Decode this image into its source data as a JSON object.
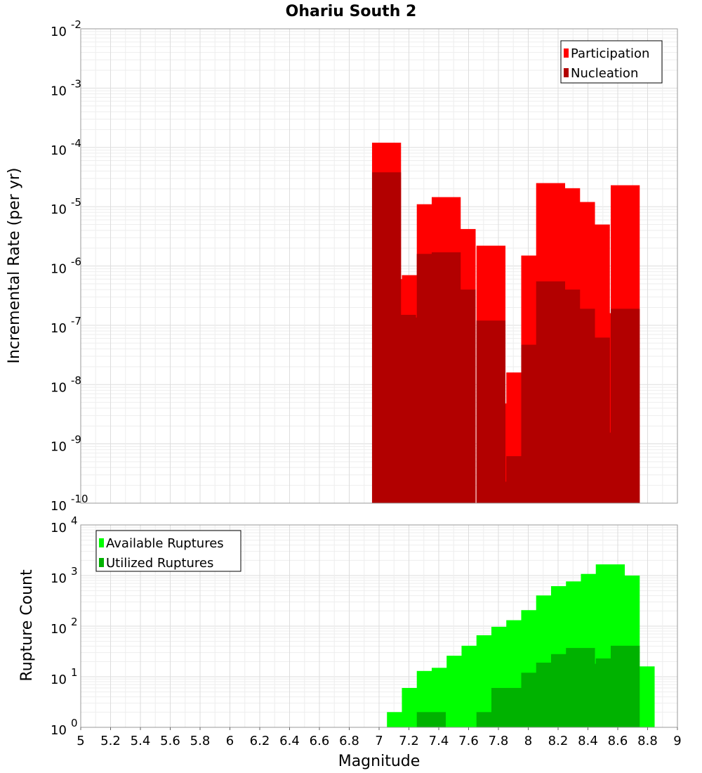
{
  "chart_data": {
    "type": "bar",
    "title": "Ohariu South 2",
    "xlabel": "Magnitude",
    "xlim": [
      5,
      9
    ],
    "x_ticks": [
      "5",
      "5.2",
      "5.4",
      "5.6",
      "5.8",
      "6",
      "6.2",
      "6.4",
      "6.6",
      "6.8",
      "7",
      "7.2",
      "7.4",
      "7.6",
      "7.8",
      "8",
      "8.2",
      "8.4",
      "8.6",
      "8.8",
      "9"
    ],
    "top_panel": {
      "ylabel": "Incremental Rate (per yr)",
      "y_scale": "log",
      "y_exponents": [
        -10,
        -2
      ],
      "y_ticks": [
        {
          "base": "10",
          "exp": "-2"
        },
        {
          "base": "10",
          "exp": "-3"
        },
        {
          "base": "10",
          "exp": "-4"
        },
        {
          "base": "10",
          "exp": "-5"
        },
        {
          "base": "10",
          "exp": "-6"
        },
        {
          "base": "10",
          "exp": "-7"
        },
        {
          "base": "10",
          "exp": "-8"
        },
        {
          "base": "10",
          "exp": "-9"
        },
        {
          "base": "10",
          "exp": "-10"
        }
      ],
      "legend": {
        "position": "top-right",
        "entries": [
          {
            "label": "Participation",
            "color": "#ff0000"
          },
          {
            "label": "Nucleation",
            "color": "#b20000"
          }
        ]
      },
      "series": [
        {
          "name": "Participation",
          "color": "#ff0000",
          "x": [
            7.05,
            7.15,
            7.25,
            7.35,
            7.45,
            7.55,
            7.75,
            7.85,
            7.95,
            8.05,
            8.15,
            8.25,
            8.35,
            8.45,
            8.55,
            8.65
          ],
          "values": [
            0.00012,
            6e-07,
            7e-07,
            1.1e-05,
            1.45e-05,
            4.2e-06,
            2.2e-06,
            4.8e-09,
            1.6e-08,
            1.5e-06,
            2.5e-05,
            2.05e-05,
            1.2e-05,
            5e-06,
            1.6e-07,
            2.3e-05
          ]
        },
        {
          "name": "Nucleation",
          "color": "#b20000",
          "x": [
            7.05,
            7.15,
            7.25,
            7.35,
            7.45,
            7.55,
            7.75,
            7.85,
            7.95,
            8.05,
            8.15,
            8.25,
            8.35,
            8.45,
            8.55,
            8.65
          ],
          "values": [
            3.8e-05,
            1.5e-07,
            1.35e-07,
            1.6e-06,
            1.7e-06,
            4e-07,
            1.2e-07,
            2.3e-10,
            6.2e-10,
            4.7e-08,
            5.5e-07,
            4e-07,
            1.9e-07,
            6.2e-08,
            1.55e-09,
            1.9e-07
          ]
        }
      ]
    },
    "bottom_panel": {
      "ylabel": "Rupture Count",
      "y_scale": "log",
      "y_exponents": [
        0,
        4
      ],
      "y_ticks": [
        {
          "base": "10",
          "exp": "4"
        },
        {
          "base": "10",
          "exp": "3"
        },
        {
          "base": "10",
          "exp": "2"
        },
        {
          "base": "10",
          "exp": "1"
        },
        {
          "base": "10",
          "exp": "0"
        }
      ],
      "legend": {
        "position": "top-left",
        "entries": [
          {
            "label": "Available Ruptures",
            "color": "#00ff00"
          },
          {
            "label": "Utilized Ruptures",
            "color": "#00b200"
          }
        ]
      },
      "series": [
        {
          "name": "Available Ruptures",
          "color": "#00ff00",
          "x": [
            6.55,
            6.85,
            6.95,
            7.05,
            7.15,
            7.25,
            7.35,
            7.45,
            7.55,
            7.65,
            7.75,
            7.85,
            7.95,
            8.05,
            8.15,
            8.25,
            8.35,
            8.45,
            8.55,
            8.65,
            8.75
          ],
          "values": [
            1,
            1,
            1,
            1,
            2,
            6,
            13,
            15,
            26,
            41,
            66,
            97,
            131,
            207,
            404,
            617,
            766,
            1076,
            1661,
            1000,
            16
          ]
        },
        {
          "name": "Utilized Ruptures",
          "color": "#00b200",
          "x": [
            7.05,
            7.15,
            7.25,
            7.35,
            7.45,
            7.55,
            7.65,
            7.75,
            7.85,
            7.95,
            8.05,
            8.15,
            8.25,
            8.35,
            8.45,
            8.55,
            8.65
          ],
          "values": [
            1,
            1,
            1,
            2,
            1,
            1,
            1,
            2,
            6,
            6,
            12,
            19,
            28,
            37,
            18,
            23,
            41
          ]
        }
      ]
    }
  }
}
